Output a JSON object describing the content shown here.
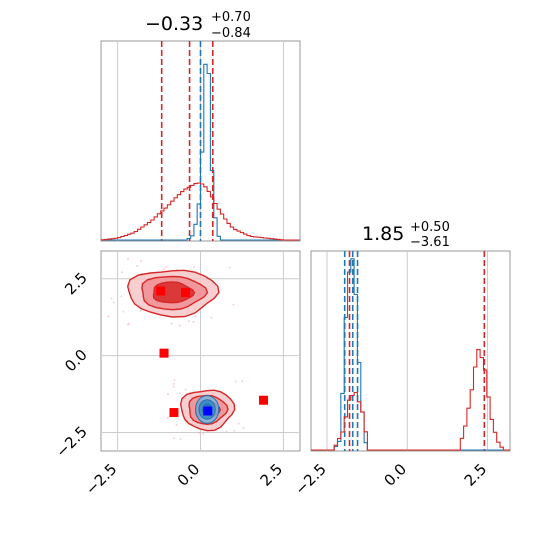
{
  "chart_data": [
    {
      "type": "histogram",
      "panel": "diag-1",
      "title": {
        "value": "−0.33",
        "plus": "+0.70",
        "minus": "−0.84"
      },
      "xlim": [
        -3.0,
        3.0
      ],
      "grid": true,
      "quantile_lines": [
        {
          "color": "#d62728",
          "x": [
            -1.17,
            -0.33,
            0.37
          ]
        },
        {
          "color": "#1f77b4",
          "x": [
            0.0
          ]
        }
      ],
      "series": [
        {
          "color": "#1f77b4",
          "x": [
            -0.4,
            -0.2,
            0.0,
            0.1,
            0.15,
            0.2,
            0.25,
            0.3,
            0.4,
            0.5,
            0.6
          ],
          "y": [
            0.0,
            0.03,
            0.25,
            0.7,
            0.95,
            1.0,
            0.9,
            0.55,
            0.2,
            0.04,
            0.0
          ]
        },
        {
          "color": "#d62728",
          "x": [
            -3.0,
            -2.5,
            -2.0,
            -1.5,
            -1.2,
            -1.0,
            -0.8,
            -0.5,
            -0.3,
            -0.1,
            0.1,
            0.3,
            0.5,
            0.8,
            1.0,
            1.5,
            2.0,
            2.5,
            3.0
          ],
          "y": [
            0.0,
            0.01,
            0.04,
            0.1,
            0.15,
            0.18,
            0.22,
            0.27,
            0.29,
            0.31,
            0.3,
            0.25,
            0.18,
            0.1,
            0.06,
            0.02,
            0.01,
            0.0,
            0.0
          ]
        }
      ]
    },
    {
      "type": "histogram",
      "panel": "diag-2",
      "title": {
        "value": "1.85",
        "plus": "+0.50",
        "minus": "−3.61"
      },
      "xlim": [
        -3.0,
        3.2
      ],
      "xticks": [
        "−2.5",
        "0.0",
        "2.5"
      ],
      "grid": true,
      "quantile_lines": [
        {
          "color": "#d62728",
          "x": [
            -1.8,
            2.4
          ]
        },
        {
          "color": "#1f77b4",
          "x": [
            -1.95,
            -1.7,
            -1.55
          ]
        }
      ],
      "series": [
        {
          "color": "#1f77b4",
          "x": [
            -2.3,
            -2.1,
            -2.0,
            -1.9,
            -1.8,
            -1.7,
            -1.6,
            -1.5,
            -1.4,
            -1.3,
            -1.2
          ],
          "y": [
            0.0,
            0.05,
            0.35,
            0.75,
            0.95,
            1.0,
            0.8,
            0.45,
            0.2,
            0.04,
            0.0
          ]
        },
        {
          "color": "#d62728",
          "x": [
            -2.3,
            -2.0,
            -1.8,
            -1.6,
            -1.4,
            -1.2,
            1.6,
            1.8,
            2.0,
            2.2,
            2.4,
            2.6,
            2.8,
            3.0
          ],
          "y": [
            0.0,
            0.1,
            0.27,
            0.3,
            0.2,
            0.0,
            0.0,
            0.12,
            0.3,
            0.53,
            0.45,
            0.18,
            0.05,
            0.0
          ]
        }
      ]
    },
    {
      "type": "contour",
      "panel": "joint",
      "xlim": [
        -3.0,
        3.0
      ],
      "ylim": [
        -3.1,
        3.4
      ],
      "xticks": [
        "−2.5",
        "0.0",
        "2.5"
      ],
      "yticks": [
        "−2.5",
        "0.0",
        "2.5"
      ],
      "grid": true,
      "series": [
        {
          "color": "#d62728",
          "blobs": [
            {
              "cx": -0.85,
              "cy": 2.05,
              "rx": 1.35,
              "ry": 0.75
            },
            {
              "cx": 0.2,
              "cy": -1.75,
              "rx": 0.8,
              "ry": 0.65
            }
          ]
        },
        {
          "color": "#1f77b4",
          "blobs": [
            {
              "cx": 0.2,
              "cy": -1.75,
              "rx": 0.35,
              "ry": 0.45
            }
          ]
        }
      ],
      "markers": [
        {
          "color": "#ff0000",
          "x": -1.2,
          "y": 2.1
        },
        {
          "color": "#ff0000",
          "x": -0.45,
          "y": 2.05
        },
        {
          "color": "#ff0000",
          "x": -1.1,
          "y": 0.08
        },
        {
          "color": "#ff0000",
          "x": -0.8,
          "y": -1.85
        },
        {
          "color": "#ff0000",
          "x": 1.9,
          "y": -1.45
        },
        {
          "color": "#0000ff",
          "x": 0.22,
          "y": -1.8
        }
      ]
    }
  ]
}
